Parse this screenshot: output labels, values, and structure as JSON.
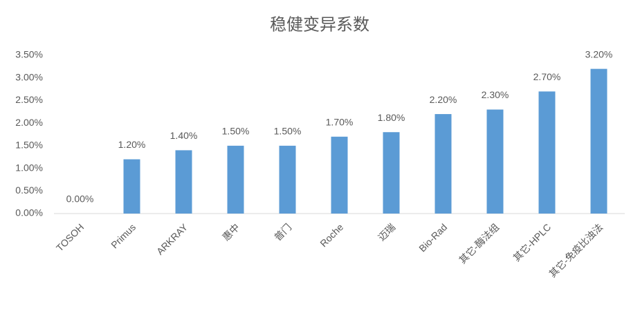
{
  "chart_data": {
    "type": "bar",
    "title": "稳健变异系数",
    "categories": [
      "TOSOH",
      "Primus",
      "ARKRAY",
      "惠中",
      "普门",
      "Roche",
      "迈瑞",
      "Bio-Rad",
      "其它-酶法组",
      "其它-HPLC",
      "其它-免疫比浊法"
    ],
    "values": [
      0,
      1.2,
      1.4,
      1.5,
      1.5,
      1.7,
      1.8,
      2.2,
      2.3,
      2.7,
      3.2
    ],
    "value_labels": [
      "0.00%",
      "1.20%",
      "1.40%",
      "1.50%",
      "1.50%",
      "1.70%",
      "1.80%",
      "2.20%",
      "2.30%",
      "2.70%",
      "3.20%"
    ],
    "color": "#5b9bd5",
    "ylim": [
      0,
      3.5
    ],
    "yticks": [
      {
        "value": 0,
        "label": "0.00%"
      },
      {
        "value": 0.5,
        "label": "0.50%"
      },
      {
        "value": 1,
        "label": "1.00%"
      },
      {
        "value": 1.5,
        "label": "1.50%"
      },
      {
        "value": 2,
        "label": "2.00%"
      },
      {
        "value": 2.5,
        "label": "2.50%"
      },
      {
        "value": 3,
        "label": "3.00%"
      },
      {
        "value": 3.5,
        "label": "3.50%"
      }
    ],
    "grid": false
  }
}
